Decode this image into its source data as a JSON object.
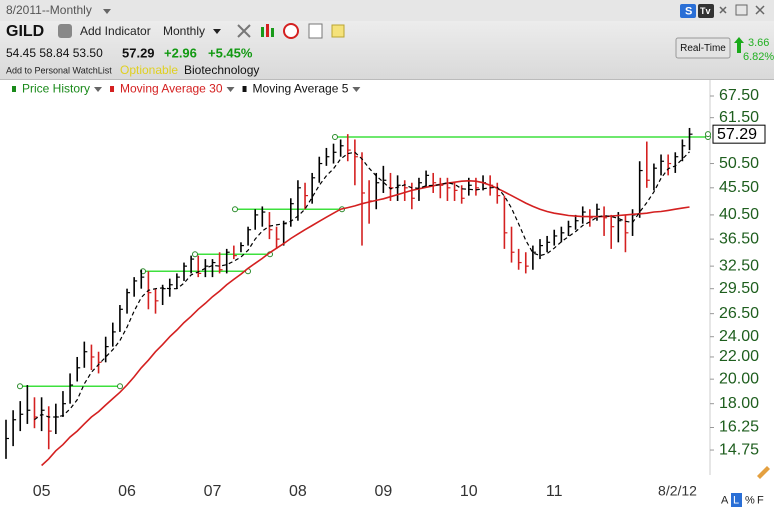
{
  "header": {
    "window_title": "8/2011--Monthly",
    "symbol": "GILD",
    "add_indicator": "Add Indicator",
    "period": "Monthly",
    "ohl": "54.45 58.84 53.50",
    "last": "57.29",
    "change": "+2.96",
    "change_pct": "+5.45%",
    "watchlist": "Add to Personal WatchList",
    "optionable": "Optionable",
    "industry": "Biotechnology",
    "realtime": "Real-Time",
    "rt_change": "3.66",
    "rt_change_pct": "6.82%",
    "icon_s": "S",
    "icon_tv": "Tv"
  },
  "footer_buttons": [
    "A",
    "L",
    "%",
    "F"
  ],
  "chart_data": {
    "type": "ohlc",
    "log": true,
    "ylim": [
      13.25,
      72.3
    ],
    "down_color": "#d42020",
    "categories": [
      null,
      null,
      null,
      null,
      null,
      "05",
      null,
      null,
      null,
      null,
      null,
      null,
      null,
      null,
      null,
      null,
      null,
      "06",
      null,
      null,
      null,
      null,
      null,
      null,
      null,
      null,
      null,
      null,
      null,
      "07",
      null,
      null,
      null,
      null,
      null,
      null,
      null,
      null,
      null,
      null,
      null,
      "08",
      null,
      null,
      null,
      null,
      null,
      null,
      null,
      null,
      null,
      null,
      null,
      "09",
      null,
      null,
      null,
      null,
      null,
      null,
      null,
      null,
      null,
      null,
      null,
      "10",
      null,
      null,
      null,
      null,
      null,
      null,
      null,
      null,
      null,
      null,
      null,
      "11",
      null,
      null,
      null,
      null,
      null,
      null,
      null,
      null,
      null,
      null,
      null,
      null,
      null,
      null,
      null,
      null,
      null,
      null,
      "8/2/12"
    ],
    "yticks": [
      {
        "value": 67.5,
        "label": "67.50"
      },
      {
        "value": 61.5,
        "label": "61.50"
      },
      {
        "value": 50.5,
        "label": "50.50"
      },
      {
        "value": 45.5,
        "label": "45.50"
      },
      {
        "value": 40.5,
        "label": "40.50"
      },
      {
        "value": 36.5,
        "label": "36.50"
      },
      {
        "value": 32.5,
        "label": "32.50"
      },
      {
        "value": 29.5,
        "label": "29.50"
      },
      {
        "value": 26.5,
        "label": "26.50"
      },
      {
        "value": 24,
        "label": "24.00"
      },
      {
        "value": 22,
        "label": "22.00"
      },
      {
        "value": 20,
        "label": "20.00"
      },
      {
        "value": 18,
        "label": "18.00"
      },
      {
        "value": 16.25,
        "label": "16.25"
      },
      {
        "value": 14.75,
        "label": "14.75"
      }
    ],
    "last_price": 57.29,
    "levels": [
      19.4,
      31.8,
      34.2,
      41.5,
      56.6
    ],
    "level_color": "#3ee03e",
    "series": [
      {
        "name": "Price History",
        "color": "#000000",
        "label_color": "#1a8a1a",
        "high": [
          16.8,
          17.5,
          18.2,
          19.5,
          18.5,
          18.5,
          17.8,
          18.0,
          19.0,
          20.5,
          22.0,
          23.5,
          23.2,
          22.5,
          24.0,
          25.5,
          27.5,
          29.5,
          31.0,
          32.0,
          31.8,
          29.5,
          30.0,
          30.8,
          31.5,
          33.0,
          34.0,
          34.0,
          33.5,
          33.5,
          34.5,
          35.0,
          35.5,
          36.0,
          38.5,
          41.5,
          42.0,
          41.0,
          38.5,
          39.5,
          43.5,
          47.0,
          46.5,
          48.5,
          52.0,
          54.0,
          55.0,
          56.0,
          57.3,
          56.0,
          53.0,
          47.0,
          48.5,
          50.0,
          48.5,
          48.0,
          47.0,
          46.5,
          47.5,
          49.0,
          48.5,
          47.5,
          47.5,
          46.5,
          46.0,
          47.5,
          47.5,
          48.0,
          48.0,
          46.5,
          44.0,
          38.5,
          35.0,
          34.5,
          35.5,
          36.5,
          37.0,
          38.0,
          38.5,
          39.5,
          40.5,
          42.0,
          41.5,
          42.5,
          42.0,
          40.5,
          41.0,
          40.5,
          41.5,
          51.0,
          55.5,
          50.5,
          52.5,
          52.5,
          53.0,
          56.0,
          58.84
        ],
        "low": [
          14.2,
          15.0,
          16.0,
          16.5,
          16.2,
          16.0,
          14.8,
          15.8,
          17.0,
          18.0,
          19.8,
          21.0,
          20.8,
          20.5,
          21.5,
          23.0,
          24.5,
          26.5,
          28.5,
          29.5,
          27.0,
          26.5,
          27.5,
          28.5,
          29.5,
          30.5,
          31.5,
          31.0,
          31.0,
          31.0,
          31.5,
          31.5,
          33.5,
          34.5,
          35.5,
          38.0,
          38.5,
          36.5,
          35.0,
          35.5,
          38.5,
          39.5,
          41.5,
          42.5,
          46.5,
          50.0,
          50.5,
          52.0,
          51.0,
          46.0,
          35.5,
          39.0,
          41.5,
          44.5,
          43.0,
          43.0,
          43.0,
          41.5,
          43.0,
          45.5,
          44.5,
          43.5,
          43.0,
          43.0,
          42.5,
          44.0,
          44.0,
          45.0,
          44.0,
          42.5,
          35.0,
          33.0,
          32.0,
          31.5,
          32.0,
          33.5,
          34.5,
          35.5,
          36.0,
          37.0,
          38.0,
          39.0,
          38.5,
          39.5,
          37.0,
          35.0,
          36.0,
          34.5,
          37.0,
          40.0,
          45.5,
          45.0,
          48.0,
          48.0,
          48.5,
          51.0,
          53.5
        ],
        "close": [
          15.5,
          16.8,
          17.2,
          17.5,
          17.0,
          17.5,
          16.0,
          17.0,
          18.0,
          19.5,
          21.0,
          22.5,
          22.0,
          21.5,
          23.0,
          24.5,
          27.0,
          29.0,
          30.5,
          31.0,
          29.0,
          28.0,
          29.5,
          30.0,
          31.0,
          32.5,
          33.5,
          31.5,
          32.5,
          33.0,
          32.0,
          34.5,
          34.0,
          35.5,
          38.0,
          40.5,
          41.0,
          38.0,
          36.5,
          39.0,
          42.5,
          45.5,
          44.0,
          47.5,
          50.5,
          52.0,
          53.0,
          54.5,
          53.5,
          52.0,
          44.5,
          43.0,
          46.5,
          47.0,
          45.5,
          46.0,
          45.5,
          43.5,
          46.5,
          48.0,
          46.5,
          46.0,
          45.5,
          45.0,
          43.5,
          46.0,
          45.5,
          46.5,
          46.0,
          44.0,
          37.5,
          34.5,
          33.0,
          32.5,
          34.5,
          35.5,
          36.0,
          37.0,
          37.5,
          38.5,
          39.5,
          41.0,
          40.0,
          41.5,
          40.0,
          38.5,
          39.5,
          37.5,
          40.5,
          49.0,
          47.0,
          49.5,
          51.0,
          50.5,
          52.0,
          54.5,
          57.29
        ]
      },
      {
        "name": "Moving Average 30",
        "color": "#d42020",
        "label_color": "#d42020",
        "values": [
          null,
          null,
          null,
          null,
          null,
          13.8,
          14.2,
          14.7,
          15.1,
          15.6,
          16.0,
          16.5,
          17.0,
          17.4,
          17.9,
          18.4,
          18.9,
          19.5,
          20.2,
          21.0,
          21.7,
          22.5,
          23.2,
          24.0,
          24.7,
          25.5,
          26.2,
          27.0,
          27.7,
          28.5,
          29.2,
          30.0,
          30.7,
          31.4,
          32.2,
          32.9,
          33.6,
          34.4,
          35.1,
          35.8,
          36.6,
          37.3,
          38.0,
          38.7,
          39.4,
          40.1,
          40.8,
          41.5,
          41.8,
          42.1,
          42.5,
          42.8,
          43.1,
          43.4,
          43.8,
          44.2,
          44.6,
          45.0,
          45.3,
          45.6,
          45.9,
          46.2,
          46.4,
          46.6,
          46.8,
          46.9,
          46.8,
          46.5,
          46.0,
          45.4,
          44.7,
          44.0,
          43.3,
          42.6,
          42.0,
          41.5,
          41.1,
          40.8,
          40.6,
          40.4,
          40.3,
          40.2,
          40.2,
          40.2,
          40.2,
          40.3,
          40.4,
          40.5,
          40.6,
          40.7,
          40.8,
          41.0,
          41.1,
          41.3,
          41.5,
          41.7,
          41.9
        ]
      },
      {
        "name": "Moving Average 5",
        "color": "#000000",
        "label_color": "#111111",
        "dash": true,
        "values": [
          null,
          null,
          null,
          null,
          16.8,
          17.2,
          17.0,
          17.0,
          17.1,
          17.6,
          18.3,
          19.6,
          20.6,
          21.3,
          22.0,
          22.7,
          23.6,
          25.0,
          26.8,
          28.4,
          29.3,
          29.5,
          29.6,
          29.5,
          29.5,
          30.2,
          31.3,
          31.7,
          32.2,
          32.6,
          32.5,
          32.7,
          33.2,
          33.8,
          34.8,
          36.5,
          37.8,
          38.6,
          38.8,
          39.0,
          39.4,
          40.3,
          41.5,
          43.7,
          46.0,
          47.9,
          49.4,
          51.5,
          52.7,
          53.0,
          51.5,
          49.5,
          47.9,
          46.6,
          45.3,
          45.6,
          46.1,
          45.5,
          45.4,
          45.9,
          46.0,
          46.1,
          46.5,
          46.2,
          45.3,
          45.2,
          45.1,
          45.3,
          45.5,
          45.6,
          43.9,
          41.7,
          39.0,
          36.3,
          34.4,
          34.0,
          34.3,
          35.1,
          36.1,
          36.9,
          37.7,
          38.7,
          39.3,
          40.1,
          40.4,
          40.2,
          39.9,
          39.4,
          39.2,
          41.0,
          42.7,
          44.7,
          47.4,
          49.4,
          50.0,
          51.5,
          53.1
        ]
      }
    ]
  }
}
